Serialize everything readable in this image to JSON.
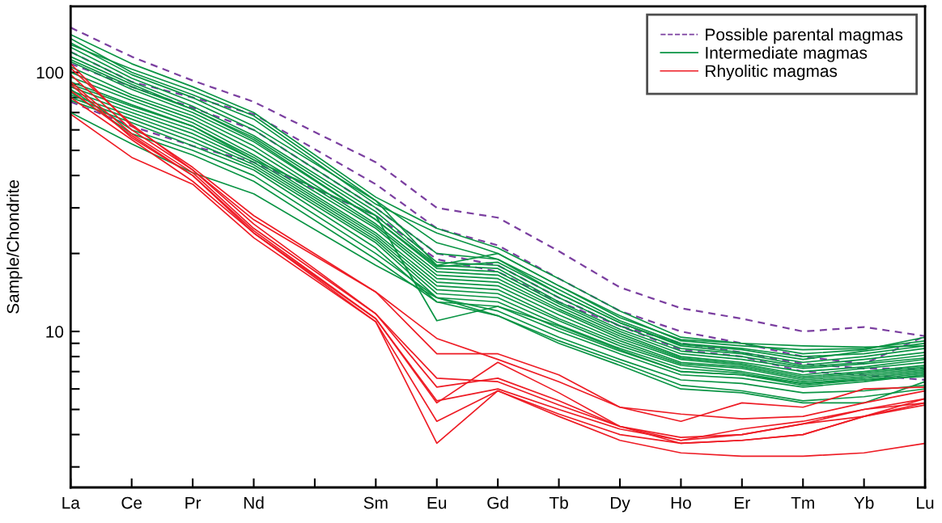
{
  "chart_data": {
    "type": "line",
    "ylabel": "Sample/Chondrite",
    "categories": [
      "La",
      "Ce",
      "Pr",
      "Nd",
      null,
      "Sm",
      "Eu",
      "Gd",
      "Tb",
      "Dy",
      "Ho",
      "Er",
      "Tm",
      "Yb",
      "Lu"
    ],
    "log": true,
    "ylim": [
      2.5,
      180
    ],
    "yticks": [
      {
        "value": 3,
        "label": null
      },
      {
        "value": 4,
        "label": null
      },
      {
        "value": 5,
        "label": null
      },
      {
        "value": 6,
        "label": null
      },
      {
        "value": 7,
        "label": null
      },
      {
        "value": 8,
        "label": null
      },
      {
        "value": 9,
        "label": null
      },
      10,
      {
        "value": 20,
        "label": null
      },
      {
        "value": 30,
        "label": null
      },
      {
        "value": 40,
        "label": null
      },
      {
        "value": 50,
        "label": null
      },
      {
        "value": 60,
        "label": null
      },
      {
        "value": 70,
        "label": null
      },
      {
        "value": 80,
        "label": null
      },
      {
        "value": 90,
        "label": null
      },
      100
    ],
    "legend": "top right",
    "grid": false,
    "series": [
      {
        "name": "Possible parental magmas",
        "color": "#7b3fa0",
        "line_style": "dashed",
        "values": [
          149,
          115,
          93,
          77,
          null,
          45,
          30,
          27.5,
          20.4,
          14.8,
          12.3,
          11.2,
          10.0,
          10.4,
          9.6
        ]
      },
      {
        "color": "#7b3fa0",
        "line_style": "dashed",
        "values": [
          120,
          92,
          80,
          69,
          null,
          37,
          25,
          21.5,
          16,
          12,
          10,
          9,
          8,
          7.5,
          9.6
        ]
      },
      {
        "color": "#7b3fa0",
        "line_style": "dashed",
        "values": [
          108,
          88,
          73,
          60,
          null,
          30,
          20,
          18,
          13.5,
          10.5,
          9,
          8.3,
          7.5,
          7.2,
          7.2
        ]
      },
      {
        "color": "#7b3fa0",
        "line_style": "dashed",
        "values": [
          77,
          62,
          52,
          45,
          null,
          28,
          19,
          17,
          13,
          10.5,
          8.5,
          8,
          7,
          6.8,
          6.5
        ]
      },
      {
        "name": "Intermediate magmas",
        "color": "#0a9444",
        "line_style": "solid",
        "values": [
          140,
          108,
          88,
          70,
          null,
          33,
          25,
          21,
          16,
          12,
          9.5,
          9,
          8.2,
          8.5,
          9.5
        ]
      },
      {
        "color": "#0a9444",
        "line_style": "solid",
        "values": [
          135,
          100,
          82,
          66,
          null,
          31,
          24,
          20,
          15,
          11.5,
          9.2,
          8.8,
          8.5,
          8.6,
          9.2
        ]
      },
      {
        "color": "#0a9444",
        "line_style": "solid",
        "values": [
          130,
          98,
          80,
          62,
          null,
          32,
          22,
          19,
          14.5,
          11,
          9,
          8.6,
          8,
          8.2,
          8.8
        ]
      },
      {
        "color": "#0a9444",
        "line_style": "solid",
        "values": [
          125,
          95,
          77,
          60,
          null,
          30,
          20,
          19,
          14,
          10.8,
          8.8,
          8.3,
          7.6,
          8,
          8.6
        ]
      },
      {
        "color": "#0a9444",
        "line_style": "solid",
        "values": [
          120,
          92,
          74,
          57,
          null,
          29,
          18.5,
          18,
          13.5,
          10.5,
          8.6,
          8.2,
          7.4,
          7.8,
          8.3
        ]
      },
      {
        "color": "#0a9444",
        "line_style": "solid",
        "values": [
          115,
          90,
          72,
          56,
          null,
          28,
          18,
          17.5,
          13,
          10.2,
          8.4,
          8,
          7.3,
          7.6,
          8.1
        ]
      },
      {
        "color": "#0a9444",
        "line_style": "solid",
        "values": [
          110,
          86,
          70,
          54,
          null,
          27,
          17.5,
          17,
          12.8,
          10,
          8.2,
          7.8,
          7.2,
          7.5,
          7.9
        ]
      },
      {
        "color": "#0a9444",
        "line_style": "solid",
        "values": [
          105,
          82,
          68,
          52,
          null,
          26,
          17,
          16.5,
          12.5,
          9.8,
          8,
          7.6,
          7,
          7.3,
          7.8
        ]
      },
      {
        "color": "#0a9444",
        "line_style": "solid",
        "values": [
          100,
          80,
          66,
          50,
          null,
          25.5,
          16.5,
          16,
          12.2,
          9.6,
          7.9,
          7.5,
          6.8,
          7.2,
          7.6
        ]
      },
      {
        "color": "#0a9444",
        "line_style": "solid",
        "values": [
          96,
          78,
          64,
          48,
          null,
          25,
          16,
          15.5,
          12,
          9.4,
          7.8,
          7.4,
          6.7,
          7,
          7.4
        ]
      },
      {
        "color": "#0a9444",
        "line_style": "solid",
        "values": [
          92,
          75,
          62,
          47,
          null,
          24,
          15.5,
          15,
          11.6,
          9.2,
          7.6,
          7.3,
          6.6,
          6.9,
          7.3
        ]
      },
      {
        "color": "#0a9444",
        "line_style": "solid",
        "values": [
          88,
          72,
          60,
          46,
          null,
          23.5,
          15,
          14.5,
          11.2,
          9,
          7.5,
          7.2,
          6.5,
          6.8,
          7.2
        ]
      },
      {
        "color": "#0a9444",
        "line_style": "solid",
        "values": [
          85,
          70,
          58,
          45,
          null,
          23,
          14.5,
          14,
          11,
          8.8,
          7.4,
          7,
          6.4,
          6.7,
          7.1
        ]
      },
      {
        "color": "#0a9444",
        "line_style": "solid",
        "values": [
          82,
          68,
          56,
          44,
          null,
          22.5,
          14,
          13.5,
          10.6,
          8.6,
          7.2,
          6.9,
          6.3,
          6.6,
          7
        ]
      },
      {
        "color": "#0a9444",
        "line_style": "solid",
        "values": [
          80,
          66,
          54,
          43,
          null,
          22,
          13.5,
          13,
          10.3,
          8.4,
          7,
          6.8,
          6.2,
          6.5,
          6.9
        ]
      },
      {
        "color": "#0a9444",
        "line_style": "solid",
        "values": [
          78,
          64,
          52,
          42,
          null,
          21,
          13,
          12.5,
          10,
          8.2,
          6.8,
          6.6,
          6.1,
          6.4,
          6.8
        ]
      },
      {
        "color": "#0a9444",
        "line_style": "solid",
        "values": [
          90,
          74,
          62,
          46,
          null,
          28,
          11,
          12.5,
          10.5,
          8.5,
          7,
          6.8,
          6.3,
          6.5,
          6.7
        ]
      },
      {
        "color": "#0a9444",
        "line_style": "solid",
        "values": [
          86,
          60,
          50,
          40,
          null,
          20,
          13.5,
          12,
          9.5,
          7.8,
          6.5,
          6.3,
          5.8,
          5.9,
          6.2
        ]
      },
      {
        "color": "#0a9444",
        "line_style": "solid",
        "values": [
          84,
          58,
          48,
          38,
          null,
          19,
          13,
          11.5,
          9.2,
          7.6,
          6.2,
          5.9,
          5.4,
          5.6,
          6
        ]
      },
      {
        "color": "#0a9444",
        "line_style": "solid",
        "values": [
          70,
          53,
          41,
          34,
          null,
          18,
          13.5,
          11.5,
          9,
          7.4,
          6,
          5.8,
          5.3,
          5.3,
          6.4
        ]
      },
      {
        "color": "#0a9444",
        "line_style": "solid",
        "values": [
          128,
          103,
          85,
          68,
          null,
          32,
          18,
          20,
          15,
          11.3,
          9.3,
          9,
          8.8,
          8.7,
          8.8
        ]
      },
      {
        "color": "#0a9444",
        "line_style": "solid",
        "values": [
          112,
          88,
          72,
          55,
          null,
          27,
          17.8,
          18.5,
          14,
          10.8,
          8.9,
          8.5,
          7.8,
          8.4,
          9
        ]
      },
      {
        "name": "Rhyolitic magmas",
        "color": "#ee1c25",
        "line_style": "solid",
        "values": [
          108,
          62,
          43,
          28,
          null,
          14.2,
          9.4,
          7.8,
          6.4,
          5.1,
          4.8,
          4.6,
          4.7,
          5.3,
          5.9
        ]
      },
      {
        "color": "#ee1c25",
        "line_style": "solid",
        "values": [
          104,
          63,
          42,
          27,
          null,
          14.2,
          8.2,
          8.2,
          6.8,
          5.1,
          4.5,
          5.3,
          5.1,
          6,
          6.1
        ]
      },
      {
        "color": "#ee1c25",
        "line_style": "solid",
        "values": [
          98,
          60,
          42,
          26,
          null,
          11.7,
          6.6,
          6.4,
          5.2,
          4.3,
          3.8,
          4.2,
          4.5,
          5,
          5.5
        ]
      },
      {
        "color": "#ee1c25",
        "line_style": "solid",
        "values": [
          92,
          58,
          41,
          25,
          null,
          11.7,
          6.1,
          6.6,
          5.4,
          4.3,
          3.9,
          4,
          4.4,
          5,
          5.3
        ]
      },
      {
        "color": "#ee1c25",
        "line_style": "solid",
        "values": [
          85,
          57,
          40,
          24.5,
          null,
          11.2,
          5.4,
          6,
          5,
          4.2,
          3.8,
          4,
          4.4,
          4.7,
          5.2
        ]
      },
      {
        "color": "#ee1c25",
        "line_style": "solid",
        "values": [
          90,
          56,
          40,
          24,
          null,
          11.2,
          5.3,
          7.6,
          5.8,
          4.3,
          3.7,
          3.8,
          4,
          4.7,
          5.5
        ]
      },
      {
        "color": "#ee1c25",
        "line_style": "solid",
        "values": [
          80,
          55,
          38,
          24,
          null,
          10.9,
          4.5,
          5.9,
          4.8,
          4,
          3.7,
          3.8,
          4,
          4.7,
          5.3
        ]
      },
      {
        "color": "#ee1c25",
        "line_style": "solid",
        "values": [
          69,
          47,
          37,
          23,
          null,
          10.9,
          3.7,
          5.9,
          4.7,
          3.8,
          3.4,
          3.3,
          3.3,
          3.4,
          3.7
        ]
      }
    ]
  }
}
